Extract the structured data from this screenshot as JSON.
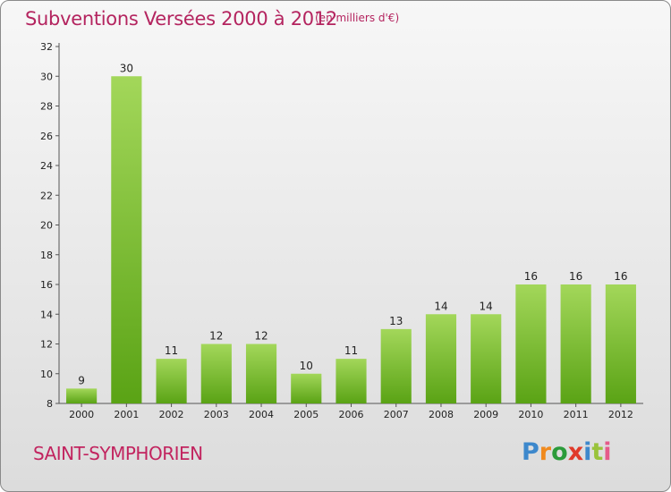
{
  "title": "Subventions Versées 2000 à 2012",
  "subtitle": "(en milliers d'€)",
  "commune": "SAINT-SYMPHORIEN",
  "logo": {
    "text": "Proxiti",
    "letters": [
      "P",
      "r",
      "o",
      "x",
      "i",
      "t",
      "i"
    ],
    "colors": [
      "#3d88cc",
      "#f08a1e",
      "#2b9b3a",
      "#e03a2a",
      "#3d88cc",
      "#9ac33b",
      "#e55a8a"
    ]
  },
  "colors": {
    "bar_light": "#a3d75a",
    "bar_dark": "#5aa315",
    "title": "#b4245f",
    "frame": "#8a8a8a"
  },
  "chart_data": {
    "type": "bar",
    "categories": [
      "2000",
      "2001",
      "2002",
      "2003",
      "2004",
      "2005",
      "2006",
      "2007",
      "2008",
      "2009",
      "2010",
      "2011",
      "2012"
    ],
    "values": [
      9,
      30,
      11,
      12,
      12,
      10,
      11,
      13,
      14,
      14,
      16,
      16,
      16
    ],
    "title": "Subventions Versées 2000 à 2012",
    "xlabel": "",
    "ylabel": "",
    "ylim": [
      8,
      32
    ],
    "yticks": [
      8,
      10,
      12,
      14,
      16,
      18,
      20,
      22,
      24,
      26,
      28,
      30,
      32
    ],
    "grid": false,
    "legend": "none"
  }
}
